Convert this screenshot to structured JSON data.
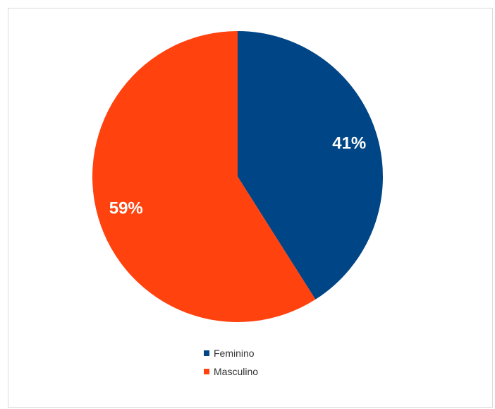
{
  "chart_data": {
    "type": "pie",
    "title": "",
    "slices": [
      {
        "label": "Feminino",
        "value": 41,
        "display": "41%",
        "color": "#004586"
      },
      {
        "label": "Masculino",
        "value": 59,
        "display": "59%",
        "color": "#ff420e"
      }
    ],
    "legend_position": "bottom"
  }
}
